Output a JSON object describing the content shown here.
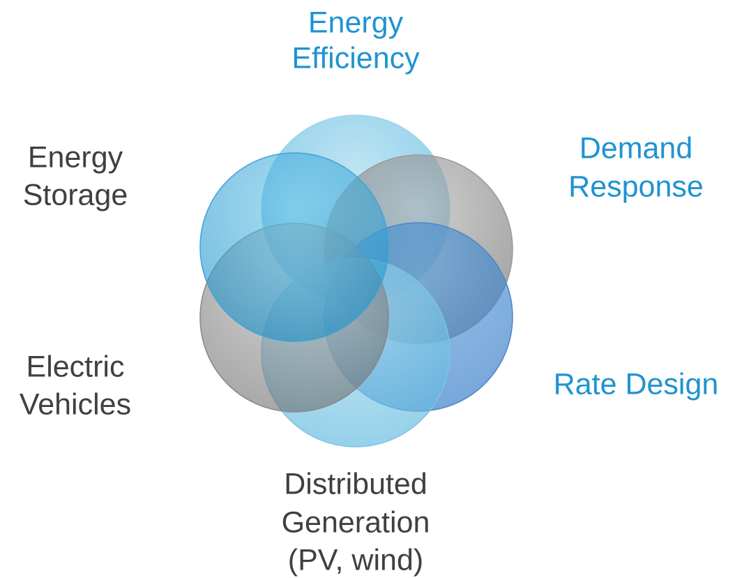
{
  "nodes": [
    {
      "label": [
        "Energy",
        "Efficiency"
      ]
    },
    {
      "label": [
        "Demand",
        "Response"
      ]
    },
    {
      "label": [
        "Rate Design"
      ]
    },
    {
      "label": [
        "Distributed",
        "Generation",
        "(PV, wind)"
      ]
    },
    {
      "label": [
        "Electric",
        "Vehicles"
      ]
    },
    {
      "label": [
        "Energy",
        "Storage"
      ]
    }
  ]
}
